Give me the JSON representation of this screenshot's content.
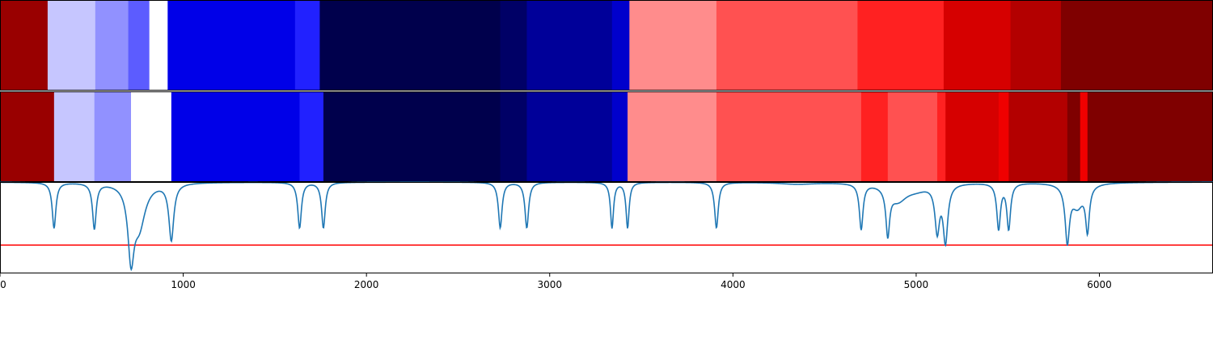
{
  "colors": {
    "band_palette": {
      "dk_red": "#7f0000",
      "red2": "#990000",
      "red3": "#b30000",
      "red4": "#d60000",
      "red5": "#f00000",
      "red6": "#ff2121",
      "salmon": "#ff5151",
      "salmon2": "#ff7373",
      "pink": "#ff8c8c",
      "white": "#ffffff",
      "lav": "#c6c6ff",
      "lav2": "#9191ff",
      "periwinkle": "#5c5cff",
      "blue": "#0000e8",
      "blue2": "#2121ff",
      "navy": "#00004c",
      "navy2": "#000066",
      "navy3": "#000099",
      "navy4": "#0000cc"
    },
    "spectrum_line": "#1f77b4",
    "threshold_line": "#ff0000",
    "axes": "#000000"
  },
  "chart_data": {
    "type": "heatmap",
    "description_panels": [
      "band-row-1",
      "band-row-2",
      "line-spectrum"
    ],
    "xlim": [
      0,
      6620
    ],
    "x_ticks": [
      0,
      1000,
      2000,
      3000,
      4000,
      5000,
      6000
    ],
    "x_tick_labels": [
      "0",
      "1000",
      "2000",
      "3000",
      "4000",
      "5000",
      "6000"
    ],
    "xlabel": "",
    "ylabel": "",
    "grid": false,
    "band_rows": [
      {
        "name": "",
        "segments": [
          {
            "x0": 0,
            "x1": 260,
            "color": "red2"
          },
          {
            "x0": 260,
            "x1": 520,
            "color": "lav"
          },
          {
            "x0": 520,
            "x1": 700,
            "color": "lav2"
          },
          {
            "x0": 700,
            "x1": 815,
            "color": "periwinkle"
          },
          {
            "x0": 815,
            "x1": 915,
            "color": "white"
          },
          {
            "x0": 915,
            "x1": 1610,
            "color": "blue"
          },
          {
            "x0": 1610,
            "x1": 1745,
            "color": "blue2"
          },
          {
            "x0": 1745,
            "x1": 2730,
            "color": "navy"
          },
          {
            "x0": 2730,
            "x1": 2875,
            "color": "navy2"
          },
          {
            "x0": 2875,
            "x1": 3340,
            "color": "navy3"
          },
          {
            "x0": 3340,
            "x1": 3435,
            "color": "navy4"
          },
          {
            "x0": 3435,
            "x1": 3910,
            "color": "pink"
          },
          {
            "x0": 3910,
            "x1": 4680,
            "color": "salmon"
          },
          {
            "x0": 4680,
            "x1": 5150,
            "color": "red6"
          },
          {
            "x0": 5150,
            "x1": 5515,
            "color": "red4"
          },
          {
            "x0": 5515,
            "x1": 5790,
            "color": "red3"
          },
          {
            "x0": 5790,
            "x1": 6620,
            "color": "dk_red"
          }
        ]
      },
      {
        "name": "",
        "segments": [
          {
            "x0": 0,
            "x1": 295,
            "color": "red2"
          },
          {
            "x0": 295,
            "x1": 515,
            "color": "lav"
          },
          {
            "x0": 515,
            "x1": 715,
            "color": "lav2"
          },
          {
            "x0": 715,
            "x1": 935,
            "color": "white"
          },
          {
            "x0": 935,
            "x1": 1635,
            "color": "blue"
          },
          {
            "x0": 1635,
            "x1": 1765,
            "color": "blue2"
          },
          {
            "x0": 1765,
            "x1": 2730,
            "color": "navy"
          },
          {
            "x0": 2730,
            "x1": 2875,
            "color": "navy2"
          },
          {
            "x0": 2875,
            "x1": 3340,
            "color": "navy3"
          },
          {
            "x0": 3340,
            "x1": 3425,
            "color": "navy4"
          },
          {
            "x0": 3425,
            "x1": 3910,
            "color": "pink"
          },
          {
            "x0": 3910,
            "x1": 4700,
            "color": "salmon"
          },
          {
            "x0": 4700,
            "x1": 4845,
            "color": "red6"
          },
          {
            "x0": 4845,
            "x1": 5115,
            "color": "salmon"
          },
          {
            "x0": 5115,
            "x1": 5160,
            "color": "red6"
          },
          {
            "x0": 5160,
            "x1": 5450,
            "color": "red4"
          },
          {
            "x0": 5450,
            "x1": 5505,
            "color": "red5"
          },
          {
            "x0": 5505,
            "x1": 5825,
            "color": "red3"
          },
          {
            "x0": 5825,
            "x1": 5895,
            "color": "dk_red"
          },
          {
            "x0": 5895,
            "x1": 5935,
            "color": "red5"
          },
          {
            "x0": 5935,
            "x1": 6620,
            "color": "dk_red"
          }
        ]
      }
    ],
    "line_panel": {
      "ylim": [
        0,
        1
      ],
      "baseline": 1.0,
      "threshold": 0.31,
      "peaks": [
        {
          "x": 295,
          "depth": 0.5,
          "width": 12
        },
        {
          "x": 515,
          "depth": 0.5,
          "width": 12
        },
        {
          "x": 715,
          "depth": 0.75,
          "width": 20
        },
        {
          "x": 760,
          "depth": 0.45,
          "width": 40
        },
        {
          "x": 935,
          "depth": 0.62,
          "width": 16
        },
        {
          "x": 1635,
          "depth": 0.5,
          "width": 12
        },
        {
          "x": 1765,
          "depth": 0.5,
          "width": 12
        },
        {
          "x": 2730,
          "depth": 0.5,
          "width": 12
        },
        {
          "x": 2875,
          "depth": 0.5,
          "width": 12
        },
        {
          "x": 3340,
          "depth": 0.5,
          "width": 10
        },
        {
          "x": 3425,
          "depth": 0.5,
          "width": 10
        },
        {
          "x": 3910,
          "depth": 0.5,
          "width": 12
        },
        {
          "x": 4350,
          "depth": 0.02,
          "width": 120
        },
        {
          "x": 4700,
          "depth": 0.5,
          "width": 12
        },
        {
          "x": 4845,
          "depth": 0.5,
          "width": 12
        },
        {
          "x": 4900,
          "depth": 0.18,
          "width": 60
        },
        {
          "x": 5000,
          "depth": 0.06,
          "width": 80
        },
        {
          "x": 5115,
          "depth": 0.5,
          "width": 15
        },
        {
          "x": 5160,
          "depth": 0.62,
          "width": 15
        },
        {
          "x": 5450,
          "depth": 0.5,
          "width": 12
        },
        {
          "x": 5505,
          "depth": 0.5,
          "width": 12
        },
        {
          "x": 5825,
          "depth": 0.6,
          "width": 14
        },
        {
          "x": 5880,
          "depth": 0.25,
          "width": 40
        },
        {
          "x": 5935,
          "depth": 0.48,
          "width": 12
        }
      ]
    }
  }
}
